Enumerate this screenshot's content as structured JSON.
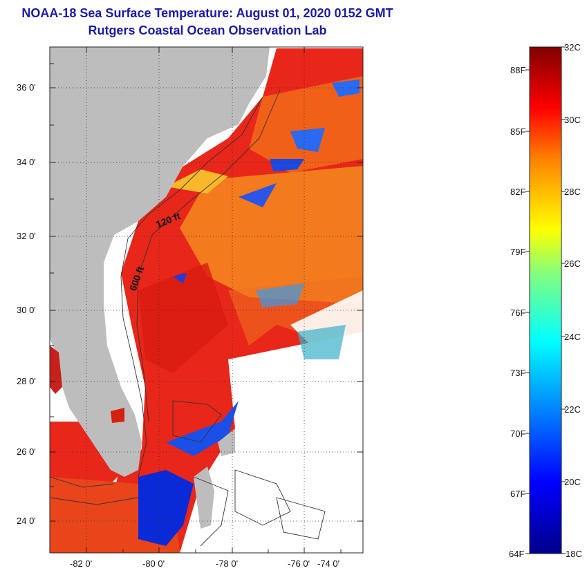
{
  "title": "NOAA-18 Sea Surface Temperature:  August 01, 2020 0152 GMT",
  "subtitle": "Rutgers Coastal Ocean Observation Lab",
  "map": {
    "longitude_ticks": [
      "-82 0'",
      "-80 0'",
      "-78 0'",
      "-76 0'",
      "-74 0'"
    ],
    "latitude_ticks": [
      "36 0'",
      "34 0'",
      "32 0'",
      "30 0'",
      "28 0'",
      "26 0'",
      "24 0'"
    ],
    "contour_labels": [
      "120 ft",
      "600 ft"
    ],
    "colors": {
      "land": "#bdbdbd",
      "no_data": "#ffffff",
      "warm": "#e8261a",
      "hot": "#d81c10",
      "orange": "#f7801d",
      "cold": "#0a2ad8"
    }
  },
  "colorbar": {
    "celsius_labels": [
      "32C",
      "30C",
      "28C",
      "26C",
      "24C",
      "22C",
      "20C",
      "18C"
    ],
    "fahrenheit_labels": [
      "88F",
      "85F",
      "82F",
      "79F",
      "76F",
      "73F",
      "70F",
      "67F",
      "64F"
    ],
    "range_c": [
      18,
      32
    ],
    "colors": [
      "#00008b",
      "#0000ff",
      "#0080ff",
      "#00ffff",
      "#80ff80",
      "#ffff00",
      "#ff8000",
      "#ff0000",
      "#800000"
    ]
  }
}
